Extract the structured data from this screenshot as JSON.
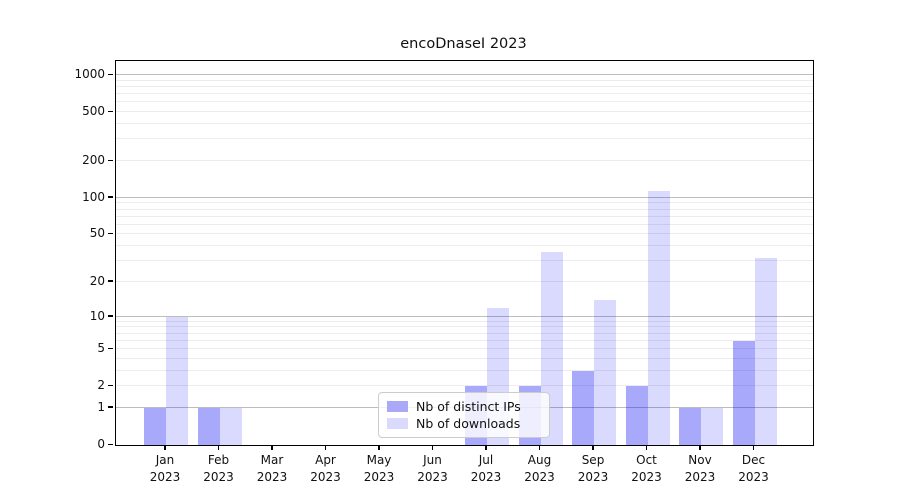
{
  "chart_data": {
    "type": "bar",
    "title": "encoDnaseI 2023",
    "categories": [
      "Jan 2023",
      "Feb 2023",
      "Mar 2023",
      "Apr 2023",
      "May 2023",
      "Jun 2023",
      "Jul 2023",
      "Aug 2023",
      "Sep 2023",
      "Oct 2023",
      "Nov 2023",
      "Dec 2023"
    ],
    "series": [
      {
        "name": "Nb of distinct IPs",
        "color": "#a9a9f8",
        "values": [
          1,
          1,
          0,
          0,
          0,
          0,
          2,
          2,
          3,
          2,
          1,
          6
        ]
      },
      {
        "name": "Nb of downloads",
        "color": "#dadafc",
        "values": [
          10,
          1,
          0,
          0,
          0,
          0,
          12,
          36,
          14,
          114,
          1,
          32
        ]
      }
    ],
    "xlabel": "",
    "ylabel": "",
    "yticks": [
      0,
      1,
      2,
      5,
      10,
      20,
      50,
      100,
      200,
      500,
      1000
    ],
    "yscale": "log1p",
    "ylim": [
      0,
      1300
    ],
    "grid": "major-and-minor horizontal",
    "legend_position": "lower center"
  }
}
